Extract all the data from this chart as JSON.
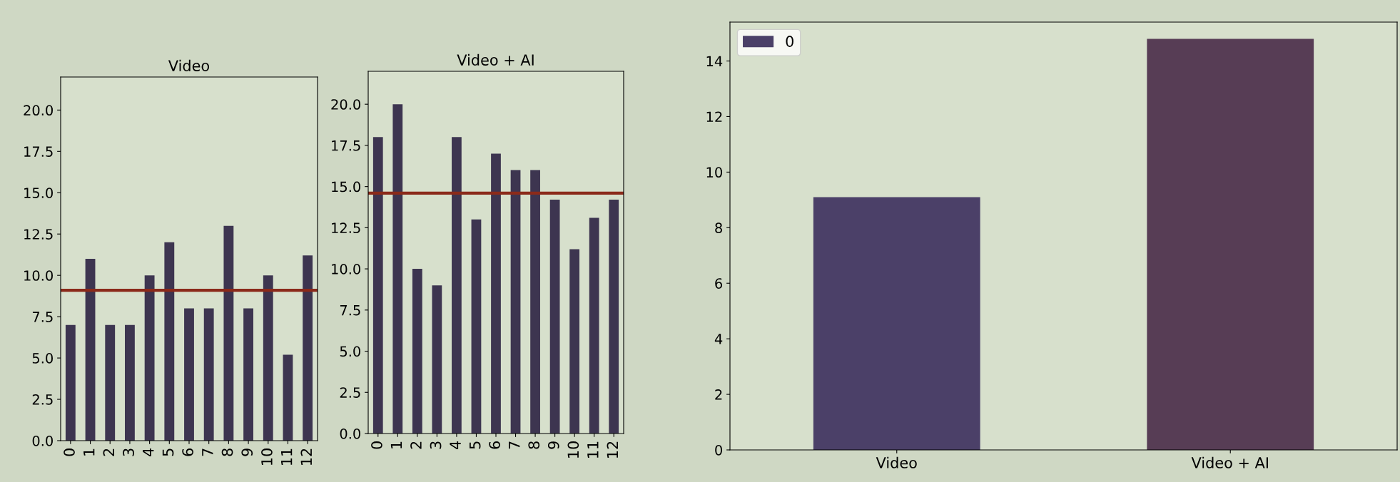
{
  "chart_data": [
    {
      "type": "bar",
      "title": "Video",
      "categories": [
        "0",
        "1",
        "2",
        "3",
        "4",
        "5",
        "6",
        "7",
        "8",
        "9",
        "10",
        "11",
        "12"
      ],
      "series": [
        {
          "color": "#3d3550",
          "values": [
            7,
            11,
            7,
            7,
            10,
            12,
            8,
            8,
            13,
            8,
            10,
            5.2,
            11.2
          ]
        }
      ],
      "ylim": [
        0,
        22
      ],
      "yticks": [
        {
          "value": 0,
          "label": "0.0"
        },
        {
          "value": 2.5,
          "label": "2.5"
        },
        {
          "value": 5,
          "label": "5.0"
        },
        {
          "value": 7.5,
          "label": "7.5"
        },
        {
          "value": 10,
          "label": "10.0"
        },
        {
          "value": 12.5,
          "label": "12.5"
        },
        {
          "value": 15,
          "label": "15.0"
        },
        {
          "value": 17.5,
          "label": "17.5"
        },
        {
          "value": 20,
          "label": "20.0"
        }
      ],
      "ref_lines": [
        {
          "axis": "y",
          "value": 9.1,
          "color": "#8b2a1a"
        }
      ]
    },
    {
      "type": "bar",
      "title": "Video + AI",
      "categories": [
        "0",
        "1",
        "2",
        "3",
        "4",
        "5",
        "6",
        "7",
        "8",
        "9",
        "10",
        "11",
        "12"
      ],
      "series": [
        {
          "color": "#3d3550",
          "values": [
            18,
            20,
            10,
            9,
            18,
            13,
            17,
            16,
            16,
            14.2,
            11.2,
            13.1,
            14.2
          ]
        }
      ],
      "ylim": [
        0,
        22
      ],
      "yticks": [
        {
          "value": 0,
          "label": "0.0"
        },
        {
          "value": 2.5,
          "label": "2.5"
        },
        {
          "value": 5,
          "label": "5.0"
        },
        {
          "value": 7.5,
          "label": "7.5"
        },
        {
          "value": 10,
          "label": "10.0"
        },
        {
          "value": 12.5,
          "label": "12.5"
        },
        {
          "value": 15,
          "label": "15.0"
        },
        {
          "value": 17.5,
          "label": "17.5"
        },
        {
          "value": 20,
          "label": "20.0"
        }
      ],
      "ref_lines": [
        {
          "axis": "y",
          "value": 14.6,
          "color": "#8b2a1a"
        }
      ]
    },
    {
      "type": "bar",
      "categories": [
        "Video",
        "Video + AI"
      ],
      "series": [
        {
          "name": "0",
          "colors": [
            "#4b4068",
            "#573d55"
          ],
          "values": [
            9.1,
            14.8
          ]
        }
      ],
      "ylim": [
        0,
        15.4
      ],
      "yticks": [
        0,
        2,
        4,
        6,
        8,
        10,
        12,
        14
      ],
      "legend": "top left"
    }
  ]
}
